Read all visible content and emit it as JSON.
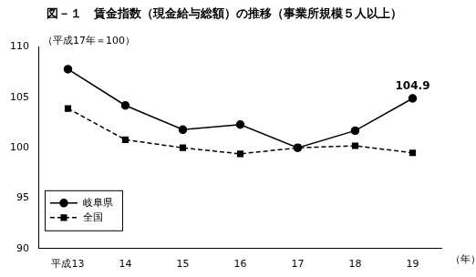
{
  "chart_data": {
    "type": "line",
    "title": "図－１　賃金指数（現金給与総額）の推移（事業所規模５人以上）",
    "y_label": "（平成17年＝100）",
    "x_label": "（年）",
    "categories": [
      "平成13",
      "14",
      "15",
      "16",
      "17",
      "18",
      "19"
    ],
    "series": [
      {
        "name": "岐阜県",
        "color": "#000000",
        "marker": "circle",
        "line_style": "solid",
        "values": [
          107.8,
          104.2,
          101.8,
          102.3,
          100.0,
          101.7,
          104.9
        ],
        "value_labels": [
          null,
          null,
          null,
          null,
          null,
          null,
          "104.9"
        ]
      },
      {
        "name": "全国",
        "color": "#000000",
        "marker": "square",
        "line_style": "dashed",
        "values": [
          103.9,
          100.8,
          100.0,
          99.4,
          100.0,
          100.2,
          99.5
        ]
      }
    ],
    "ylim": [
      90,
      110
    ],
    "yticks": [
      90,
      95,
      100,
      105,
      110
    ],
    "grid": false,
    "legend": "lower left"
  }
}
